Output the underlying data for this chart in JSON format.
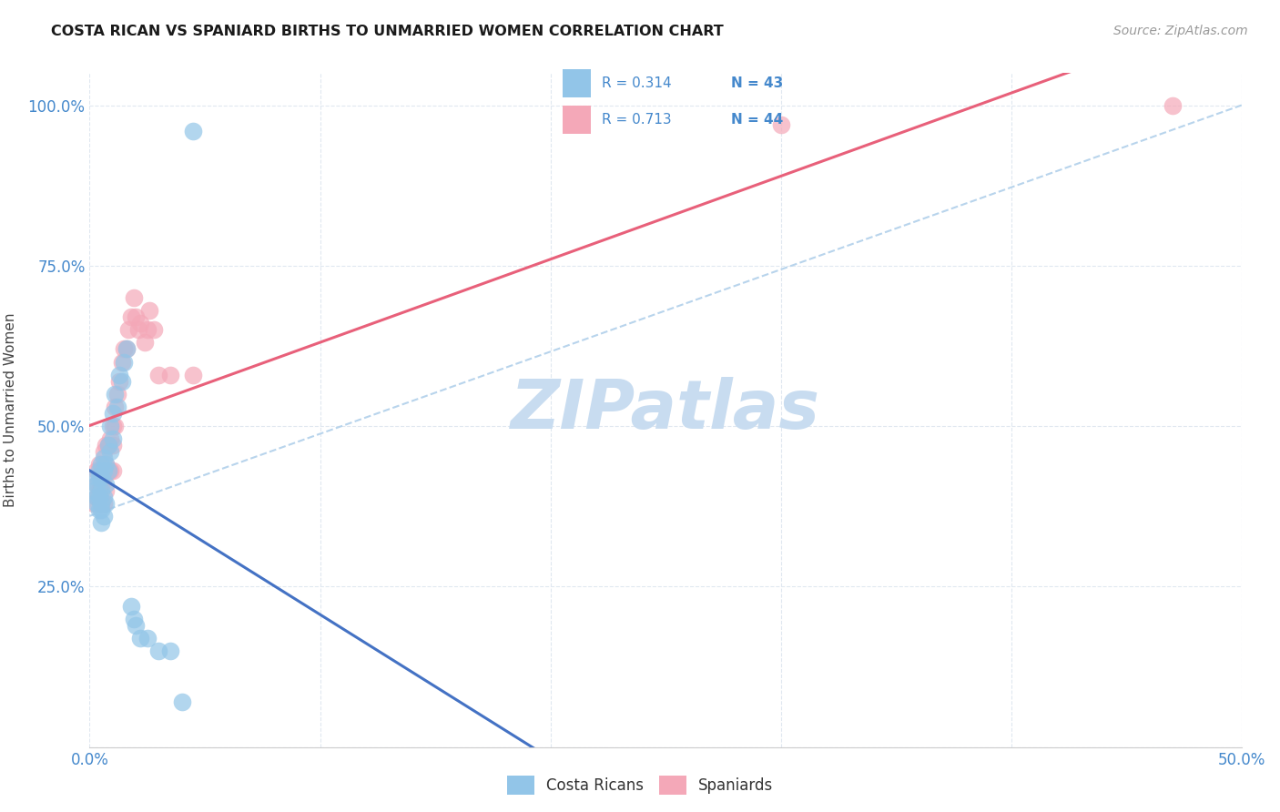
{
  "title": "COSTA RICAN VS SPANIARD BIRTHS TO UNMARRIED WOMEN CORRELATION CHART",
  "source": "Source: ZipAtlas.com",
  "ylabel": "Births to Unmarried Women",
  "xlim": [
    0.0,
    0.5
  ],
  "ylim": [
    0.0,
    1.05
  ],
  "xticks": [
    0.0,
    0.1,
    0.2,
    0.3,
    0.4,
    0.5
  ],
  "xticklabels": [
    "0.0%",
    "",
    "",
    "",
    "",
    "50.0%"
  ],
  "yticks": [
    0.0,
    0.25,
    0.5,
    0.75,
    1.0
  ],
  "yticklabels": [
    "",
    "25.0%",
    "50.0%",
    "75.0%",
    "100.0%"
  ],
  "legend_r_blue": "R = 0.314",
  "legend_n_blue": "N = 43",
  "legend_r_pink": "R = 0.713",
  "legend_n_pink": "N = 44",
  "blue_color": "#92C5E8",
  "pink_color": "#F4A8B8",
  "blue_line_color": "#4472C4",
  "pink_line_color": "#E8607A",
  "dashed_line_color": "#B8D4EC",
  "watermark_color": "#C8DCF0",
  "axis_color": "#4488CC",
  "grid_color": "#E0E8F0",
  "costa_rican_x": [
    0.002,
    0.003,
    0.003,
    0.003,
    0.003,
    0.004,
    0.004,
    0.004,
    0.004,
    0.005,
    0.005,
    0.005,
    0.005,
    0.005,
    0.005,
    0.006,
    0.006,
    0.006,
    0.006,
    0.007,
    0.007,
    0.007,
    0.008,
    0.008,
    0.009,
    0.009,
    0.01,
    0.01,
    0.011,
    0.012,
    0.013,
    0.014,
    0.015,
    0.016,
    0.018,
    0.019,
    0.02,
    0.022,
    0.025,
    0.03,
    0.035,
    0.04,
    0.045
  ],
  "costa_rican_y": [
    0.4,
    0.38,
    0.39,
    0.41,
    0.42,
    0.37,
    0.39,
    0.42,
    0.43,
    0.35,
    0.37,
    0.38,
    0.4,
    0.42,
    0.44,
    0.36,
    0.39,
    0.43,
    0.45,
    0.38,
    0.41,
    0.44,
    0.43,
    0.47,
    0.46,
    0.5,
    0.48,
    0.52,
    0.55,
    0.53,
    0.58,
    0.57,
    0.6,
    0.62,
    0.22,
    0.2,
    0.19,
    0.17,
    0.17,
    0.15,
    0.15,
    0.07,
    0.96
  ],
  "spaniard_x": [
    0.002,
    0.003,
    0.003,
    0.003,
    0.004,
    0.004,
    0.005,
    0.005,
    0.005,
    0.006,
    0.006,
    0.006,
    0.007,
    0.007,
    0.007,
    0.008,
    0.008,
    0.009,
    0.009,
    0.01,
    0.01,
    0.01,
    0.011,
    0.011,
    0.012,
    0.013,
    0.014,
    0.015,
    0.016,
    0.017,
    0.018,
    0.019,
    0.02,
    0.021,
    0.022,
    0.024,
    0.025,
    0.026,
    0.028,
    0.03,
    0.035,
    0.045,
    0.3,
    0.47
  ],
  "spaniard_y": [
    0.38,
    0.39,
    0.41,
    0.43,
    0.4,
    0.44,
    0.38,
    0.41,
    0.43,
    0.38,
    0.42,
    0.46,
    0.4,
    0.44,
    0.47,
    0.43,
    0.47,
    0.43,
    0.48,
    0.43,
    0.47,
    0.5,
    0.5,
    0.53,
    0.55,
    0.57,
    0.6,
    0.62,
    0.62,
    0.65,
    0.67,
    0.7,
    0.67,
    0.65,
    0.66,
    0.63,
    0.65,
    0.68,
    0.65,
    0.58,
    0.58,
    0.58,
    0.97,
    1.0
  ]
}
